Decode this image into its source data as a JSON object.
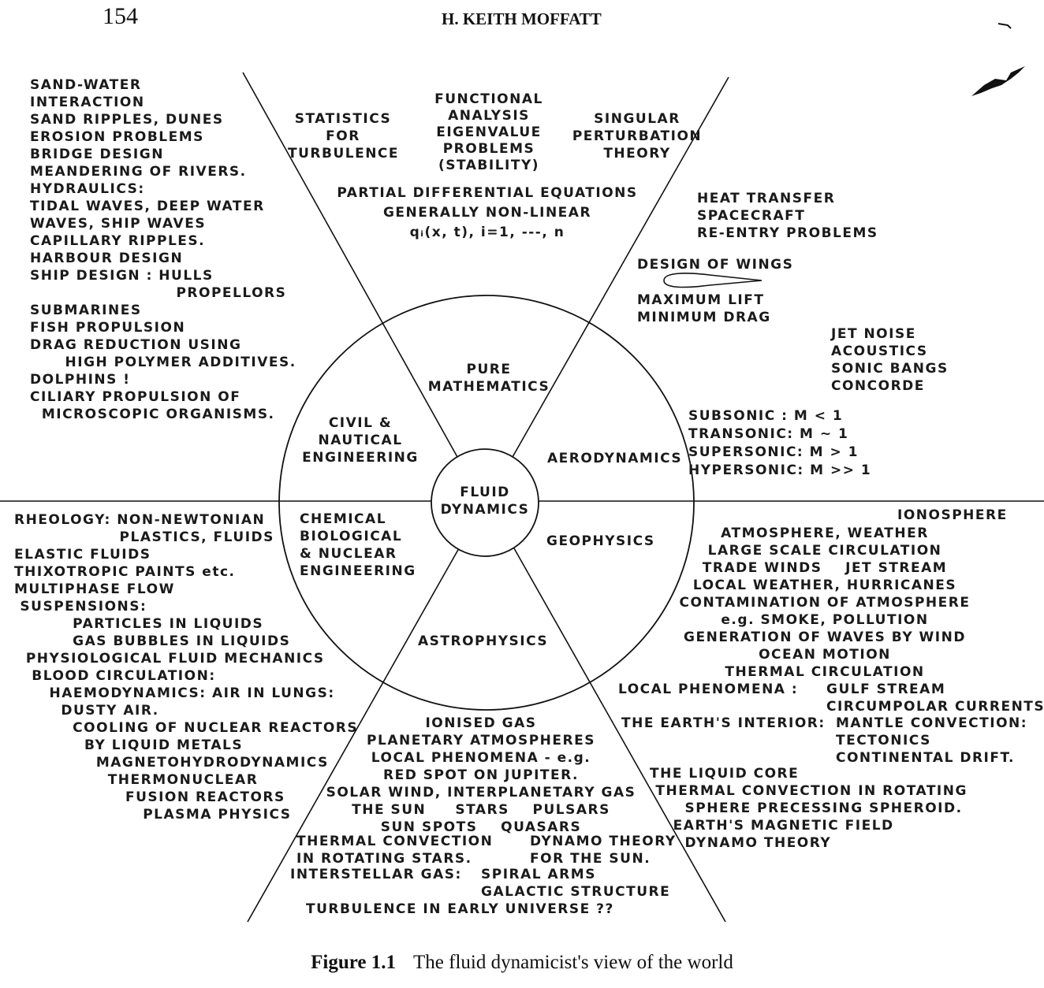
{
  "header": {
    "page_number": "154",
    "running_head": "H. KEITH MOFFATT"
  },
  "caption": {
    "label": "Figure 1.1",
    "text": "The fluid dynamicist's view of the world"
  },
  "center": "FLUID\nDYNAMICS",
  "sectors": {
    "pure_mathematics": "PURE\nMATHEMATICS",
    "civil_nautical": "CIVIL &\nNAUTICAL\nENGINEERING",
    "aerodynamics": "AERODYNAMICS",
    "chemical": "CHEMICAL\nBIOLOGICAL\n& NUCLEAR\nENGINEERING",
    "geophysics": "GEOPHYSICS",
    "astrophysics": "ASTROPHYSICS"
  },
  "math_topics": {
    "statistics": "STATISTICS\nFOR\nTURBULENCE",
    "functional": "FUNCTIONAL\nANALYSIS\nEIGENVALUE\nPROBLEMS\n(STABILITY)",
    "singular": "SINGULAR\nPERTURBATION\nTHEORY",
    "pde": "PARTIAL DIFFERENTIAL EQUATIONS\nGENERALLY NON-LINEAR\nqᵢ(x, t), i=1, ---, n"
  },
  "civil_topics": "SAND-WATER\nINTERACTION\nSAND RIPPLES, DUNES\nEROSION PROBLEMS\nBRIDGE DESIGN\nMEANDERING OF RIVERS.\nHYDRAULICS:\nTIDAL WAVES, DEEP WATER\nWAVES, SHIP WAVES\nCAPILLARY RIPPLES.\nHARBOUR DESIGN\nSHIP DESIGN : HULLS\n                         PROPELLORS\nSUBMARINES\nFISH PROPULSION\nDRAG REDUCTION USING\n      HIGH POLYMER ADDITIVES.\nDOLPHINS !\nCILIARY PROPULSION OF\n  MICROSCOPIC ORGANISMS.",
  "aero_topics": {
    "heat": "HEAT TRANSFER\nSPACECRAFT\nRE-ENTRY PROBLEMS",
    "wings_title": "DESIGN OF WINGS",
    "wings_goals": "MAXIMUM LIFT\nMINIMUM DRAG",
    "noise": "JET NOISE\nACOUSTICS\nSONIC BANGS\nCONCORDE",
    "regimes": "SUBSONIC : M < 1\nTRANSONIC: M ~ 1\nSUPERSONIC: M > 1\nHYPERSONIC: M >> 1"
  },
  "chemical_topics": "RHEOLOGY: NON-NEWTONIAN\n                  PLASTICS, FLUIDS\nELASTIC FLUIDS\nTHIXOTROPIC PAINTS etc.\nMULTIPHASE FLOW\n SUSPENSIONS:\n          PARTICLES IN LIQUIDS\n          GAS BUBBLES IN LIQUIDS\n  PHYSIOLOGICAL FLUID MECHANICS\n   BLOOD CIRCULATION:\n      HAEMODYNAMICS: AIR IN LUNGS:\n        DUSTY AIR.\n          COOLING OF NUCLEAR REACTORS\n            BY LIQUID METALS\n              MAGNETOHYDRODYNAMICS\n                THERMONUCLEAR\n                   FUSION REACTORS\n                      PLASMA PHYSICS",
  "geo_topics": {
    "ionosphere": "IONOSPHERE",
    "main": "ATMOSPHERE, WEATHER\nLARGE SCALE CIRCULATION\nTRADE WINDS    JET STREAM\nLOCAL WEATHER, HURRICANES\nCONTAMINATION OF ATMOSPHERE\ne.g. SMOKE, POLLUTION\nGENERATION OF WAVES BY WIND\nOCEAN MOTION\nTHERMAL CIRCULATION",
    "local_label": "LOCAL PHENOMENA :",
    "local_items": "GULF STREAM\nCIRCUMPOLAR CURRENTS",
    "interior_label": "THE EARTH'S INTERIOR:",
    "interior_items": "MANTLE CONVECTION:\nTECTONICS\nCONTINENTAL DRIFT.",
    "core": "THE LIQUID CORE\n THERMAL CONVECTION IN ROTATING\n      SPHERE PRECESSING SPHEROID.\n    EARTH'S MAGNETIC FIELD\n      DYNAMO THEORY"
  },
  "astro_topics": {
    "main": "IONISED GAS\nPLANETARY ATMOSPHERES\nLOCAL PHENOMENA - e.g.\nRED SPOT ON JUPITER.\nSOLAR WIND, INTERPLANETARY GAS\nTHE SUN     STARS    PULSARS\nSUN SPOTS    QUASARS",
    "thermal": "THERMAL CONVECTION\nIN ROTATING STARS.",
    "dynamo": "DYNAMO THEORY\nFOR THE SUN.",
    "interstellar_label": "INTERSTELLAR GAS:",
    "interstellar_items": "SPIRAL ARMS\nGALACTIC STRUCTURE",
    "turbulence": "TURBULENCE IN EARLY UNIVERSE ??"
  }
}
